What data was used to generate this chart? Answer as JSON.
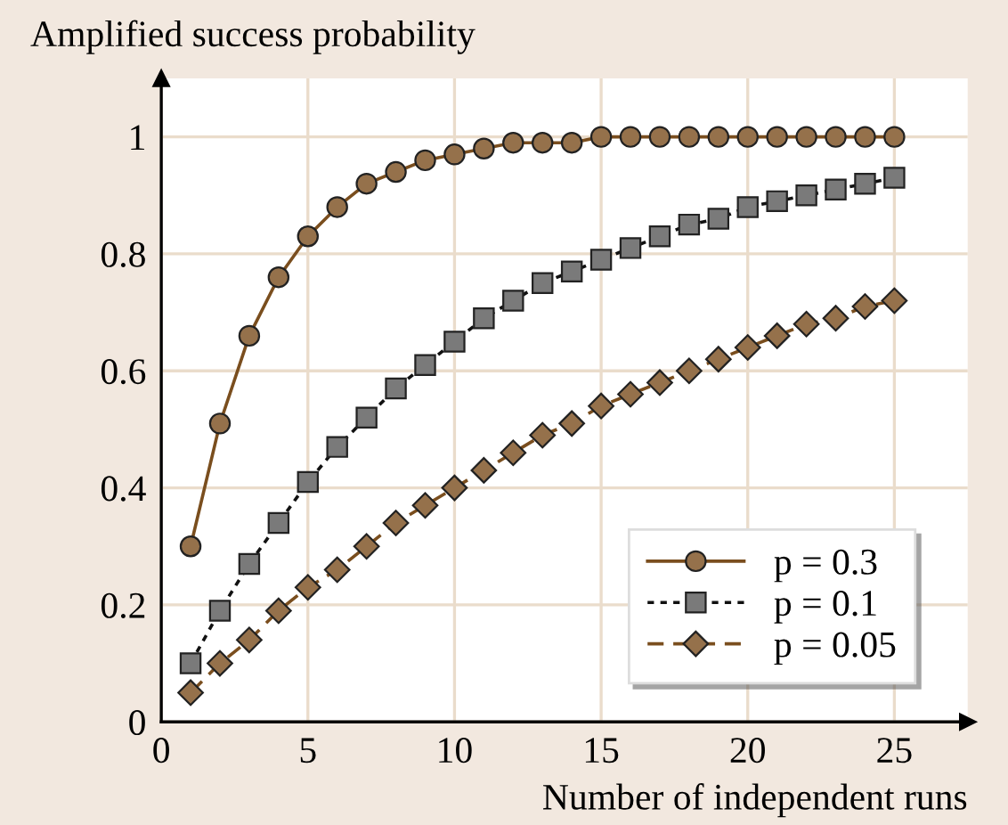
{
  "chart_data": {
    "type": "line",
    "ylabel": "Amplified success probability",
    "xlabel": "Number of independent runs",
    "x": [
      1,
      2,
      3,
      4,
      5,
      6,
      7,
      8,
      9,
      10,
      11,
      12,
      13,
      14,
      15,
      16,
      17,
      18,
      19,
      20,
      21,
      22,
      23,
      24,
      25
    ],
    "series": [
      {
        "name": "p = 0.3",
        "color": "#7a4e1e",
        "marker": "circle",
        "line_style": "solid",
        "values": [
          0.3,
          0.51,
          0.66,
          0.76,
          0.83,
          0.88,
          0.92,
          0.94,
          0.96,
          0.97,
          0.98,
          0.99,
          0.99,
          0.99,
          1.0,
          1.0,
          1.0,
          1.0,
          1.0,
          1.0,
          1.0,
          1.0,
          1.0,
          1.0,
          1.0
        ]
      },
      {
        "name": "p = 0.1",
        "color": "#111111",
        "marker": "square",
        "line_style": "dotted",
        "values": [
          0.1,
          0.19,
          0.27,
          0.34,
          0.41,
          0.47,
          0.52,
          0.57,
          0.61,
          0.65,
          0.69,
          0.72,
          0.75,
          0.77,
          0.79,
          0.81,
          0.83,
          0.85,
          0.86,
          0.88,
          0.89,
          0.9,
          0.91,
          0.92,
          0.93
        ]
      },
      {
        "name": "p = 0.05",
        "color": "#7a4e1e",
        "marker": "diamond",
        "line_style": "dashed",
        "values": [
          0.05,
          0.1,
          0.14,
          0.19,
          0.23,
          0.26,
          0.3,
          0.34,
          0.37,
          0.4,
          0.43,
          0.46,
          0.49,
          0.51,
          0.54,
          0.56,
          0.58,
          0.6,
          0.62,
          0.64,
          0.66,
          0.68,
          0.69,
          0.71,
          0.72
        ]
      }
    ],
    "xlim": [
      0,
      27.5
    ],
    "ylim": [
      0,
      1.1
    ],
    "xticks": [
      0,
      5,
      10,
      15,
      20,
      25
    ],
    "yticks": [
      0,
      0.2,
      0.4,
      0.6,
      0.8,
      1
    ],
    "grid": true,
    "legend": "bottom right"
  }
}
